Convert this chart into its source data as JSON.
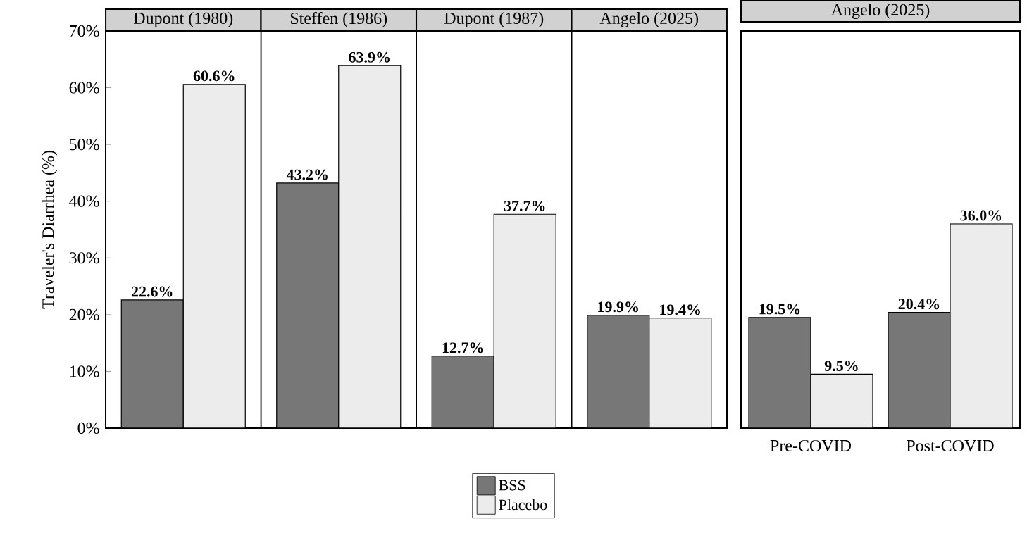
{
  "chart_data": [
    {
      "type": "bar",
      "ylabel": "Traveler's Diarrhea (%)",
      "categories": [
        "Dupont (1980)",
        "Steffen (1986)",
        "Dupont (1987)",
        "Angelo (2025)"
      ],
      "ylim": [
        0,
        70
      ],
      "yticks": [
        {
          "value": 0,
          "label": "0%"
        },
        {
          "value": 10,
          "label": "10%"
        },
        {
          "value": 20,
          "label": "20%"
        },
        {
          "value": 30,
          "label": "30%"
        },
        {
          "value": 40,
          "label": "40%"
        },
        {
          "value": 50,
          "label": "50%"
        },
        {
          "value": 60,
          "label": "60%"
        },
        {
          "value": 70,
          "label": "70%"
        }
      ],
      "legend": "bottom",
      "series": [
        {
          "name": "BSS",
          "color": "#777777",
          "values": [
            22.6,
            43.2,
            12.7,
            19.9
          ],
          "value_labels": [
            "22.6%",
            "43.2%",
            "12.7%",
            "19.9%"
          ]
        },
        {
          "name": "Placebo",
          "color": "#ececec",
          "values": [
            60.6,
            63.9,
            37.7,
            19.4
          ],
          "value_labels": [
            "60.6%",
            "63.9%",
            "37.7%",
            "19.4%"
          ]
        }
      ]
    },
    {
      "type": "bar",
      "title": "Angelo (2025)",
      "categories": [
        "Pre-COVID",
        "Post-COVID"
      ],
      "ylim": [
        0,
        70
      ],
      "tick_labels": "x",
      "series": [
        {
          "color": "#777777",
          "values": [
            19.5,
            20.4
          ],
          "value_labels": [
            "19.5%",
            "20.4%"
          ]
        },
        {
          "color": "#ececec",
          "values": [
            9.5,
            36.0
          ],
          "value_labels": [
            "9.5%",
            "36.0%"
          ]
        }
      ]
    }
  ]
}
